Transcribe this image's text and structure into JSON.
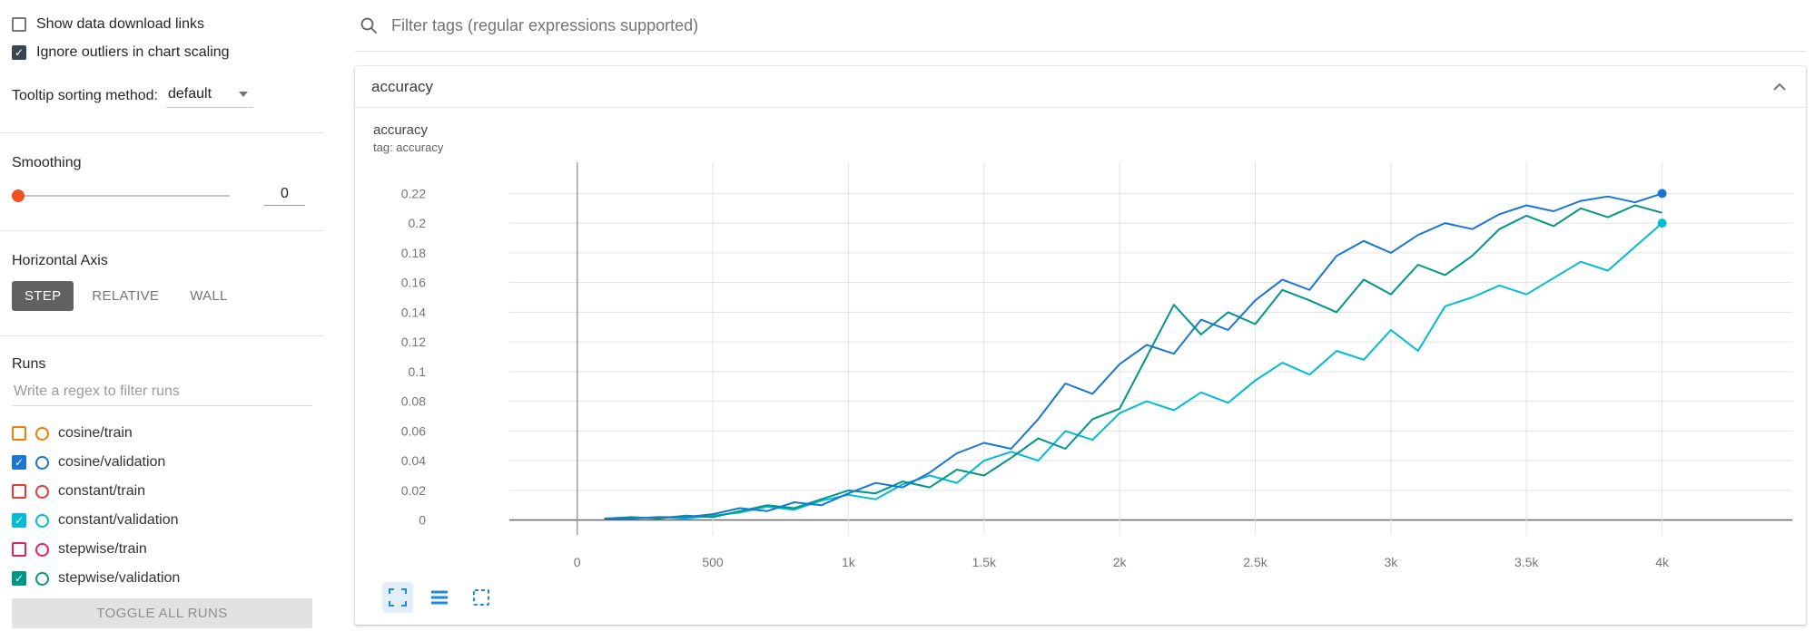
{
  "sidebar": {
    "checkbox_checked_color": "#37474f",
    "options": [
      {
        "label": "Show data download links",
        "checked": false
      },
      {
        "label": "Ignore outliers in chart scaling",
        "checked": true
      }
    ],
    "tooltip_sorting": {
      "label": "Tooltip sorting method:",
      "value": "default"
    },
    "smoothing": {
      "label": "Smoothing",
      "value": "0"
    },
    "horizontal_axis": {
      "label": "Horizontal Axis",
      "options": [
        "STEP",
        "RELATIVE",
        "WALL"
      ],
      "selected": "STEP"
    },
    "runs": {
      "label": "Runs",
      "filter_placeholder": "Write a regex to filter runs",
      "items": [
        {
          "label": "cosine/train",
          "checked": false,
          "color": "#f57c00"
        },
        {
          "label": "cosine/validation",
          "checked": true,
          "color": "#1976d2"
        },
        {
          "label": "constant/train",
          "checked": false,
          "color": "#e53935"
        },
        {
          "label": "constant/validation",
          "checked": true,
          "color": "#00bcd4"
        },
        {
          "label": "stepwise/train",
          "checked": false,
          "color": "#e91e63"
        },
        {
          "label": "stepwise/validation",
          "checked": true,
          "color": "#009688"
        }
      ],
      "toggle_all_label": "TOGGLE ALL RUNS"
    }
  },
  "main": {
    "filter_placeholder": "Filter tags (regular expressions supported)",
    "card_title": "accuracy"
  },
  "chart_data": {
    "type": "line",
    "title": "accuracy",
    "subtitle": "tag: accuracy",
    "xlabel": "",
    "ylabel": "",
    "grid": true,
    "legend_position": "none",
    "xlim": [
      -250,
      4480
    ],
    "ylim": [
      -0.01,
      0.241
    ],
    "x_ticks": [
      0,
      500,
      1000,
      1500,
      2000,
      2500,
      3000,
      3500,
      4000
    ],
    "x_tick_labels": [
      "0",
      "500",
      "1k",
      "1.5k",
      "2k",
      "2.5k",
      "3k",
      "3.5k",
      "4k"
    ],
    "y_ticks": [
      0,
      0.02,
      0.04,
      0.06,
      0.08,
      0.1,
      0.12,
      0.14,
      0.16,
      0.18,
      0.2,
      0.22
    ],
    "y_tick_labels": [
      "0",
      "0.02",
      "0.04",
      "0.06",
      "0.08",
      "0.1",
      "0.12",
      "0.14",
      "0.16",
      "0.18",
      "0.2",
      "0.22"
    ],
    "x": [
      100,
      200,
      300,
      400,
      500,
      600,
      700,
      800,
      900,
      1000,
      1100,
      1200,
      1300,
      1400,
      1500,
      1600,
      1700,
      1800,
      1900,
      2000,
      2100,
      2200,
      2300,
      2400,
      2500,
      2600,
      2700,
      2800,
      2900,
      3000,
      3100,
      3200,
      3300,
      3400,
      3500,
      3600,
      3700,
      3800,
      3900,
      4000
    ],
    "series": [
      {
        "name": "constant/validation",
        "color": "#00bcd4",
        "end_marker": true,
        "values": [
          0.001,
          0.001,
          0.002,
          0.001,
          0.003,
          0.005,
          0.009,
          0.007,
          0.013,
          0.017,
          0.014,
          0.024,
          0.03,
          0.025,
          0.04,
          0.046,
          0.04,
          0.06,
          0.054,
          0.072,
          0.08,
          0.074,
          0.086,
          0.079,
          0.094,
          0.106,
          0.098,
          0.114,
          0.108,
          0.128,
          0.114,
          0.144,
          0.15,
          0.158,
          0.152,
          0.163,
          0.174,
          0.168,
          0.184,
          0.2
        ]
      },
      {
        "name": "stepwise/validation",
        "color": "#009688",
        "end_marker": false,
        "values": [
          0.001,
          0.002,
          0.001,
          0.003,
          0.002,
          0.006,
          0.01,
          0.008,
          0.014,
          0.02,
          0.018,
          0.026,
          0.022,
          0.034,
          0.03,
          0.042,
          0.055,
          0.048,
          0.068,
          0.075,
          0.11,
          0.145,
          0.125,
          0.14,
          0.132,
          0.155,
          0.148,
          0.14,
          0.162,
          0.152,
          0.172,
          0.165,
          0.178,
          0.196,
          0.205,
          0.198,
          0.21,
          0.204,
          0.212,
          0.207
        ]
      },
      {
        "name": "cosine/validation",
        "color": "#1976d2",
        "end_marker": true,
        "values": [
          0.001,
          0.001,
          0.002,
          0.002,
          0.004,
          0.008,
          0.006,
          0.012,
          0.01,
          0.018,
          0.025,
          0.022,
          0.032,
          0.045,
          0.052,
          0.048,
          0.068,
          0.092,
          0.085,
          0.105,
          0.118,
          0.112,
          0.135,
          0.128,
          0.148,
          0.162,
          0.155,
          0.178,
          0.188,
          0.18,
          0.192,
          0.2,
          0.196,
          0.206,
          0.212,
          0.208,
          0.215,
          0.218,
          0.214,
          0.22
        ]
      }
    ]
  }
}
